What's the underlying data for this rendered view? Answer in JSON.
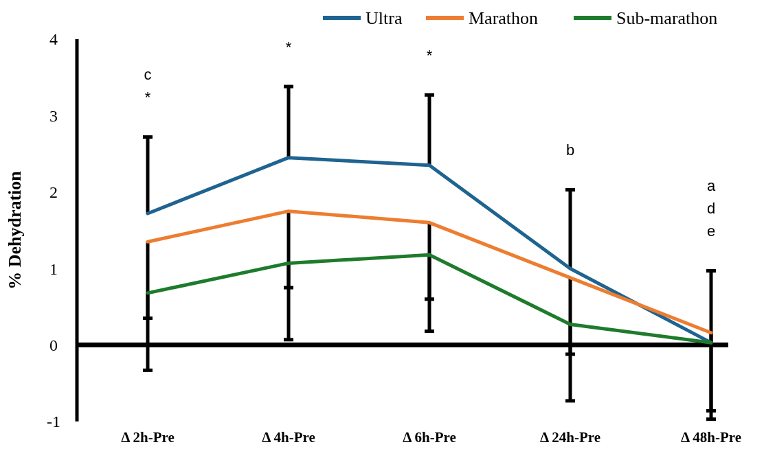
{
  "chart_data": {
    "type": "line",
    "ylabel": "% Dehydration",
    "categories": [
      "Δ 2h-Pre",
      "Δ 4h-Pre",
      "Δ 6h-Pre",
      "Δ 24h-Pre",
      "Δ 48h-Pre"
    ],
    "ylim": [
      -1,
      4
    ],
    "yticks": [
      -1,
      0,
      1,
      2,
      3,
      4
    ],
    "legend": "top right",
    "marker": "none",
    "line_style": "solid",
    "series": [
      {
        "name": "Ultra",
        "color": "#1f6391",
        "values": [
          1.72,
          2.45,
          2.35,
          1.0,
          0.03
        ],
        "errors": [
          [
            1.72,
            2.72
          ],
          [
            2.45,
            3.38
          ],
          [
            2.35,
            3.27
          ],
          [
            1.0,
            2.03
          ],
          [
            0.03,
            0.97
          ]
        ]
      },
      {
        "name": "Marathon",
        "color": "#ed7d31",
        "values": [
          1.35,
          1.75,
          1.6,
          0.88,
          0.16
        ],
        "errors": [
          [
            0.35,
            1.35
          ],
          [
            0.75,
            1.75
          ],
          [
            0.6,
            1.6
          ],
          [
            -0.12,
            0.88
          ],
          [
            -0.86,
            0.16
          ]
        ]
      },
      {
        "name": "Sub-marathon",
        "color": "#1e7b2c",
        "values": [
          0.68,
          1.07,
          1.18,
          0.27,
          0.03
        ],
        "errors": [
          [
            -0.33,
            0.68
          ],
          [
            0.07,
            1.07
          ],
          [
            0.18,
            1.18
          ],
          [
            -0.73,
            0.27
          ],
          [
            -0.97,
            0.03
          ]
        ]
      }
    ],
    "annotations": [
      "c",
      "*",
      "*",
      "*",
      "b",
      "a",
      "d",
      "e"
    ]
  }
}
